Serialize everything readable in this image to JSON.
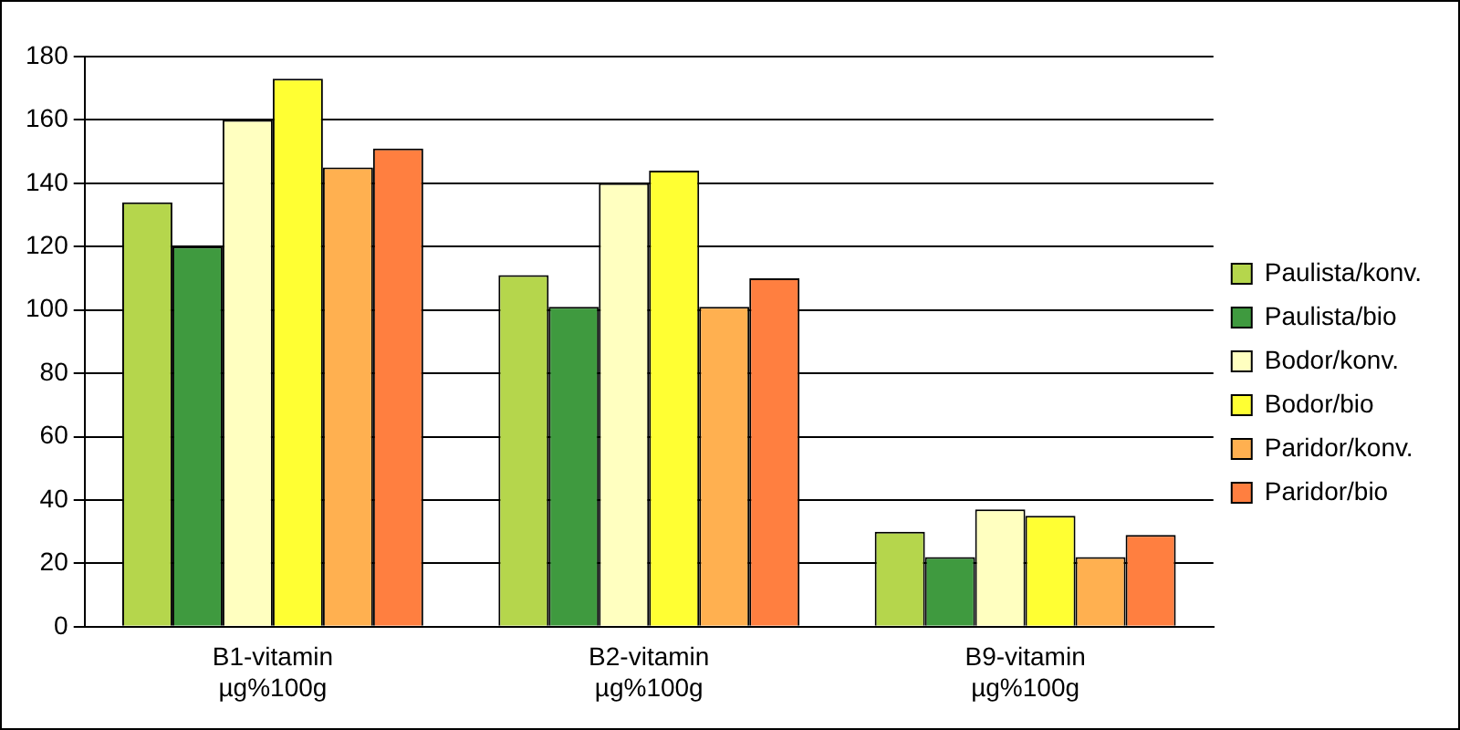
{
  "chart_data": {
    "type": "bar",
    "categories": [
      "B1-vitamin\nµg%100g",
      "B2-vitamin\nµg%100g",
      "B9-vitamin\nµg%100g"
    ],
    "series": [
      {
        "name": "Paulista/konv.",
        "color": "#b5d64c",
        "values": [
          134,
          111,
          30
        ]
      },
      {
        "name": "Paulista/bio",
        "color": "#3f9a3f",
        "values": [
          120,
          101,
          22
        ]
      },
      {
        "name": "Bodor/konv.",
        "color": "#ffffc0",
        "values": [
          160,
          140,
          37
        ]
      },
      {
        "name": "Bodor/bio",
        "color": "#ffff33",
        "values": [
          173,
          144,
          35
        ]
      },
      {
        "name": "Paridor/konv.",
        "color": "#ffb050",
        "values": [
          145,
          101,
          22
        ]
      },
      {
        "name": "Paridor/bio",
        "color": "#ff7f40",
        "values": [
          151,
          110,
          29
        ]
      }
    ],
    "ylim": [
      0,
      180
    ],
    "yticks": [
      0,
      20,
      40,
      60,
      80,
      100,
      120,
      140,
      160,
      180
    ],
    "grid": "y",
    "legend": "right"
  }
}
